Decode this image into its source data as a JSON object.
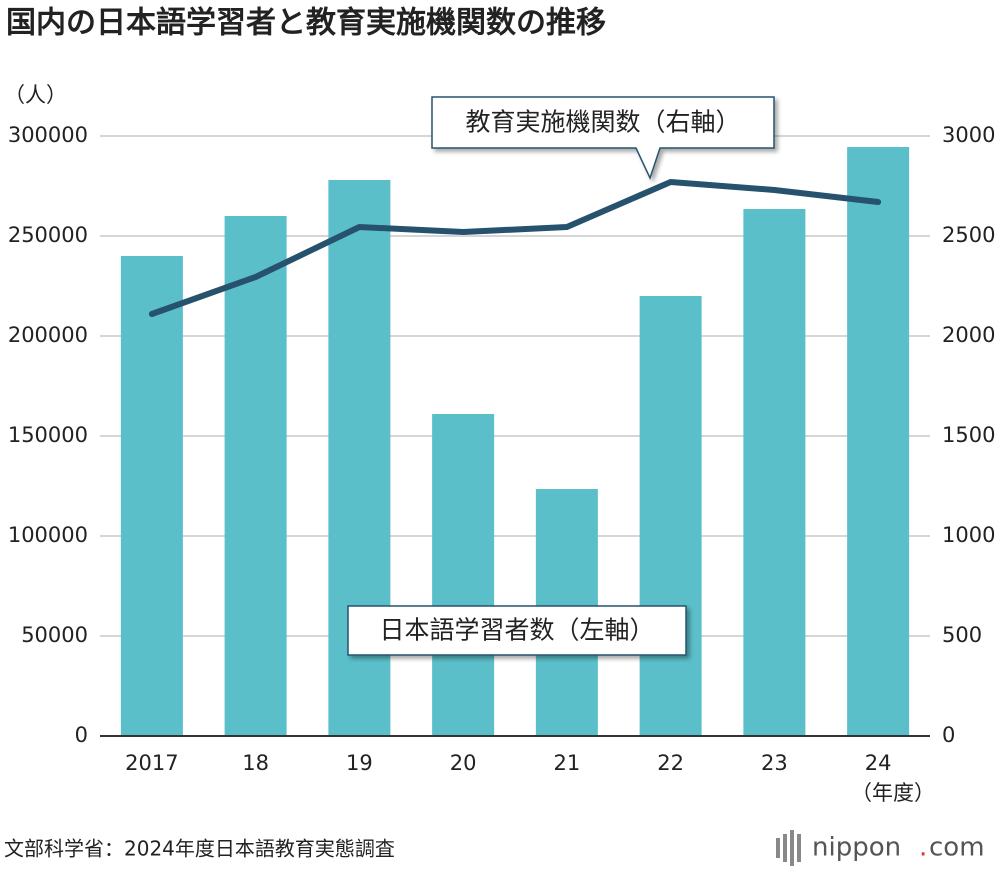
{
  "chart_data": {
    "type": "bar",
    "title": "国内の日本語学習者と教育実施機関数の推移",
    "y_label": "（人）",
    "x_label": "（年度）",
    "source": "文部科学省：2024年度日本語教育実態調査",
    "brand": [
      "nippon",
      ".",
      "com"
    ],
    "categories": [
      "2017",
      "18",
      "19",
      "20",
      "21",
      "22",
      "23",
      "24"
    ],
    "series": [
      {
        "name": "日本語学習者数（左軸）",
        "type": "bar",
        "color": "#5bbfc9",
        "values": [
          240000,
          260000,
          278000,
          161000,
          123500,
          220000,
          263500,
          294500
        ]
      },
      {
        "name": "教育実施機関数（右軸）",
        "type": "line",
        "axis": "y2",
        "color": "#27526e",
        "values": [
          2110,
          2295,
          2545,
          2520,
          2545,
          2770,
          2730,
          2670
        ]
      }
    ],
    "ylim": [
      0,
      300000
    ],
    "yticks": [
      0,
      50000,
      100000,
      150000,
      200000,
      250000,
      300000
    ],
    "y2lim": [
      0,
      3000
    ],
    "y2ticks": [
      0,
      500,
      1000,
      1500,
      2000,
      2500,
      3000
    ],
    "grid": true
  }
}
